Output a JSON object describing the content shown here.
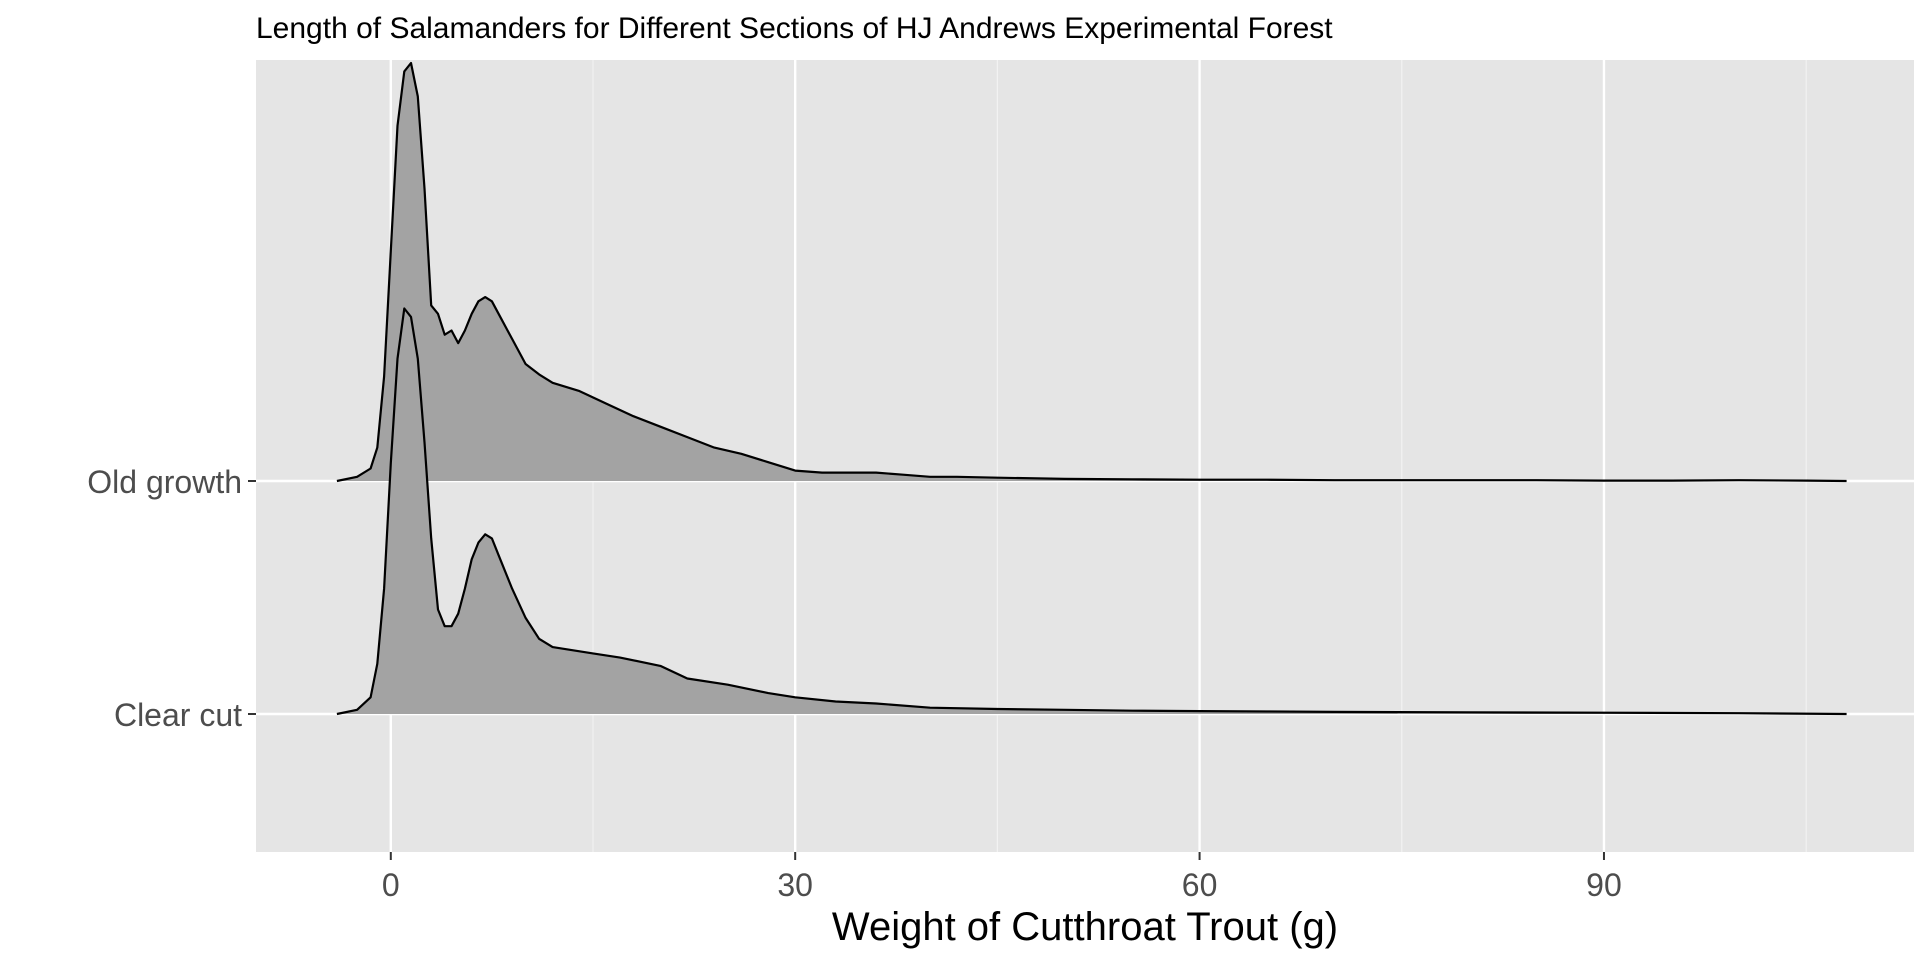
{
  "chart_data": {
    "type": "area",
    "subtype": "ridgeline",
    "title": "Length of Salamanders for Different Sections of HJ Andrews Experimental Forest",
    "xlabel": "Weight of Cutthroat Trout (g)",
    "ylabel": "",
    "xlim": [
      -10,
      113
    ],
    "x_ticks": [
      0,
      30,
      60,
      90
    ],
    "x_tick_labels": [
      "0",
      "30",
      "60",
      "90"
    ],
    "categories": [
      "Clear cut",
      "Old growth"
    ],
    "grid": true,
    "fill_color": "#a3a3a3",
    "line_color": "#000000",
    "panel_color": "#e5e5e5",
    "series": [
      {
        "name": "Old growth",
        "x": [
          -4,
          -2.5,
          -1.5,
          -1,
          -0.5,
          0,
          0.5,
          1,
          1.5,
          2,
          2.5,
          3,
          3.5,
          4,
          4.5,
          5,
          5.5,
          6,
          6.5,
          7,
          7.5,
          8,
          9,
          10,
          11,
          12,
          14,
          16,
          18,
          20,
          22,
          24,
          26,
          28,
          30,
          32,
          34,
          36,
          38,
          40,
          42,
          45,
          50,
          55,
          60,
          65,
          70,
          75,
          80,
          85,
          90,
          95,
          100,
          105,
          108
        ],
        "y": [
          0,
          0.01,
          0.03,
          0.08,
          0.25,
          0.55,
          0.85,
          0.98,
          1.0,
          0.92,
          0.7,
          0.42,
          0.4,
          0.35,
          0.36,
          0.33,
          0.36,
          0.4,
          0.43,
          0.44,
          0.43,
          0.4,
          0.34,
          0.28,
          0.255,
          0.235,
          0.215,
          0.185,
          0.155,
          0.13,
          0.105,
          0.08,
          0.065,
          0.045,
          0.025,
          0.02,
          0.02,
          0.02,
          0.015,
          0.01,
          0.01,
          0.008,
          0.005,
          0.004,
          0.003,
          0.003,
          0.002,
          0.002,
          0.002,
          0.002,
          0.001,
          0.001,
          0.002,
          0.001,
          0
        ]
      },
      {
        "name": "Clear cut",
        "x": [
          -4,
          -2.5,
          -1.5,
          -1,
          -0.5,
          0,
          0.5,
          1,
          1.5,
          2,
          2.5,
          3,
          3.5,
          4,
          4.5,
          5,
          5.5,
          6,
          6.5,
          7,
          7.5,
          8,
          9,
          10,
          11,
          12,
          13,
          15,
          17,
          20,
          22,
          25,
          28,
          30,
          33,
          36,
          40,
          45,
          50,
          55,
          60,
          65,
          70,
          80,
          90,
          100,
          108
        ],
        "y": [
          0,
          0.01,
          0.04,
          0.12,
          0.3,
          0.6,
          0.85,
          0.97,
          0.95,
          0.85,
          0.65,
          0.42,
          0.25,
          0.21,
          0.21,
          0.24,
          0.3,
          0.37,
          0.41,
          0.43,
          0.42,
          0.38,
          0.3,
          0.23,
          0.18,
          0.16,
          0.155,
          0.145,
          0.135,
          0.115,
          0.085,
          0.07,
          0.05,
          0.04,
          0.03,
          0.025,
          0.015,
          0.012,
          0.01,
          0.008,
          0.007,
          0.006,
          0.005,
          0.004,
          0.003,
          0.002,
          0
        ]
      }
    ]
  }
}
